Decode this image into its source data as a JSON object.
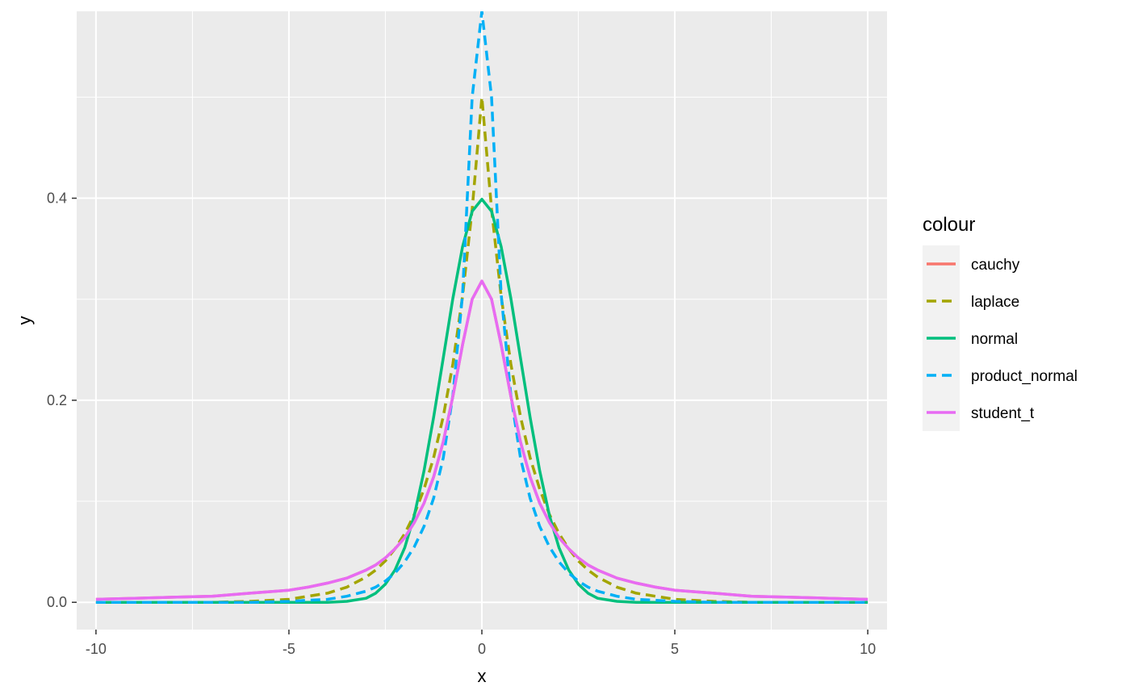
{
  "chart_data": {
    "type": "line",
    "title": "",
    "xlabel": "x",
    "ylabel": "y",
    "xlim": [
      -10.5,
      10.5
    ],
    "ylim": [
      -0.027,
      0.585
    ],
    "x_ticks": [
      -10,
      -5,
      0,
      5,
      10
    ],
    "x_tick_labels": [
      "-10",
      "-5",
      "0",
      "5",
      "10"
    ],
    "y_ticks": [
      0.0,
      0.2,
      0.4
    ],
    "y_tick_labels": [
      "0.0",
      "0.2",
      "0.4"
    ],
    "grid": true,
    "legend": {
      "title": "colour",
      "position": "right"
    },
    "x": [
      -10,
      -9,
      -8,
      -7,
      -6,
      -5,
      -4.5,
      -4,
      -3.5,
      -3,
      -2.75,
      -2.5,
      -2.25,
      -2,
      -1.75,
      -1.5,
      -1.25,
      -1,
      -0.75,
      -0.5,
      -0.25,
      0,
      0.25,
      0.5,
      0.75,
      1,
      1.25,
      1.5,
      1.75,
      2,
      2.25,
      2.5,
      2.75,
      3,
      3.5,
      4,
      4.5,
      5,
      6,
      7,
      8,
      9,
      10
    ],
    "series": [
      {
        "name": "cauchy",
        "color": "#F8766D",
        "dash": "solid",
        "values": [
          0.003,
          0.004,
          0.005,
          0.006,
          0.009,
          0.012,
          0.015,
          0.019,
          0.024,
          0.032,
          0.037,
          0.044,
          0.053,
          0.064,
          0.079,
          0.098,
          0.124,
          0.159,
          0.204,
          0.255,
          0.3,
          0.318,
          0.3,
          0.255,
          0.204,
          0.159,
          0.124,
          0.098,
          0.079,
          0.064,
          0.053,
          0.044,
          0.037,
          0.032,
          0.024,
          0.019,
          0.015,
          0.012,
          0.009,
          0.006,
          0.005,
          0.004,
          0.003
        ]
      },
      {
        "name": "laplace",
        "color": "#A3A500",
        "dash": "dashed",
        "values": [
          0.0,
          0.0,
          0.0,
          0.0,
          0.001,
          0.003,
          0.006,
          0.009,
          0.015,
          0.025,
          0.032,
          0.041,
          0.053,
          0.068,
          0.087,
          0.112,
          0.143,
          0.184,
          0.236,
          0.303,
          0.389,
          0.5,
          0.389,
          0.303,
          0.236,
          0.184,
          0.143,
          0.112,
          0.087,
          0.068,
          0.053,
          0.041,
          0.032,
          0.025,
          0.015,
          0.009,
          0.006,
          0.003,
          0.001,
          0.0,
          0.0,
          0.0,
          0.0
        ]
      },
      {
        "name": "normal",
        "color": "#00BF7D",
        "dash": "solid",
        "values": [
          0.0,
          0.0,
          0.0,
          0.0,
          0.0,
          0.0,
          0.0,
          0.0,
          0.001,
          0.004,
          0.009,
          0.018,
          0.032,
          0.054,
          0.086,
          0.13,
          0.183,
          0.242,
          0.301,
          0.352,
          0.387,
          0.399,
          0.387,
          0.352,
          0.301,
          0.242,
          0.183,
          0.13,
          0.086,
          0.054,
          0.032,
          0.018,
          0.009,
          0.004,
          0.001,
          0.0,
          0.0,
          0.0,
          0.0,
          0.0,
          0.0,
          0.0,
          0.0
        ]
      },
      {
        "name": "product_normal",
        "color": "#00B0F6",
        "dash": "dashed",
        "values": [
          0.0,
          0.0,
          0.0,
          0.0,
          0.0,
          0.001,
          0.002,
          0.003,
          0.006,
          0.011,
          0.015,
          0.021,
          0.029,
          0.04,
          0.055,
          0.075,
          0.103,
          0.143,
          0.205,
          0.305,
          0.5,
          0.585,
          0.5,
          0.305,
          0.205,
          0.143,
          0.103,
          0.075,
          0.055,
          0.04,
          0.029,
          0.021,
          0.015,
          0.011,
          0.006,
          0.003,
          0.002,
          0.001,
          0.0,
          0.0,
          0.0,
          0.0,
          0.0
        ]
      },
      {
        "name": "student_t",
        "color": "#E76BF3",
        "dash": "solid",
        "values": [
          0.003,
          0.004,
          0.005,
          0.006,
          0.009,
          0.012,
          0.015,
          0.019,
          0.024,
          0.032,
          0.037,
          0.044,
          0.053,
          0.064,
          0.079,
          0.098,
          0.124,
          0.159,
          0.204,
          0.255,
          0.3,
          0.318,
          0.3,
          0.255,
          0.204,
          0.159,
          0.124,
          0.098,
          0.079,
          0.064,
          0.053,
          0.044,
          0.037,
          0.032,
          0.024,
          0.019,
          0.015,
          0.012,
          0.009,
          0.006,
          0.005,
          0.004,
          0.003
        ]
      }
    ]
  }
}
